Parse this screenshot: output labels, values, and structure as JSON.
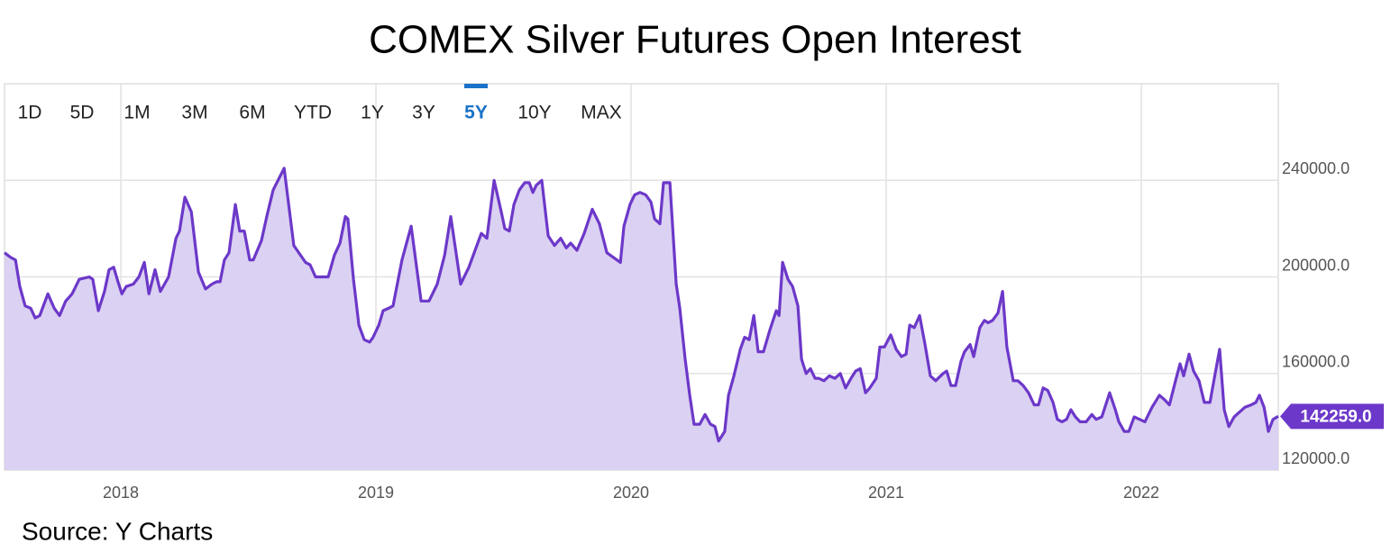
{
  "chart_data": {
    "type": "area",
    "title": "COMEX Silver Futures Open Interest",
    "source": "Source: Y Charts",
    "range_buttons": [
      "1D",
      "5D",
      "1M",
      "3M",
      "6M",
      "YTD",
      "1Y",
      "3Y",
      "5Y",
      "10Y",
      "MAX"
    ],
    "selected_range": "5Y",
    "x": [
      2017.544,
      2017.569,
      2017.587,
      2017.604,
      2017.625,
      2017.647,
      2017.664,
      2017.682,
      2017.714,
      2017.739,
      2017.76,
      2017.784,
      2017.809,
      2017.837,
      2017.876,
      2017.89,
      2017.912,
      2017.936,
      2017.954,
      2017.972,
      2017.989,
      2018.004,
      2018.021,
      2018.049,
      2018.071,
      2018.092,
      2018.11,
      2018.134,
      2018.155,
      2018.187,
      2018.216,
      2018.23,
      2018.251,
      2018.276,
      2018.304,
      2018.332,
      2018.357,
      2018.375,
      2018.389,
      2018.406,
      2018.424,
      2018.449,
      2018.466,
      2018.484,
      2018.505,
      2018.519,
      2018.551,
      2018.572,
      2018.597,
      2018.64,
      2018.678,
      2018.724,
      2018.742,
      2018.763,
      2018.795,
      2018.813,
      2018.837,
      2018.859,
      2018.88,
      2018.89,
      2018.912,
      2018.933,
      2018.954,
      2018.975,
      2018.989,
      2019.011,
      2019.028,
      2019.049,
      2019.067,
      2019.102,
      2019.138,
      2019.177,
      2019.208,
      2019.24,
      2019.269,
      2019.293,
      2019.332,
      2019.364,
      2019.413,
      2019.435,
      2019.463,
      2019.491,
      2019.505,
      2019.523,
      2019.541,
      2019.562,
      2019.583,
      2019.601,
      2019.615,
      2019.629,
      2019.65,
      2019.675,
      2019.7,
      2019.724,
      2019.746,
      2019.763,
      2019.788,
      2019.816,
      2019.848,
      2019.876,
      2019.905,
      2019.958,
      2019.972,
      2019.996,
      2020.014,
      2020.035,
      2020.057,
      2020.078,
      2020.092,
      2020.113,
      2020.127,
      2020.152,
      2020.177,
      2020.191,
      2020.212,
      2020.23,
      2020.247,
      2020.269,
      2020.29,
      2020.311,
      2020.329,
      2020.343,
      2020.367,
      2020.382,
      2020.403,
      2020.428,
      2020.445,
      2020.463,
      2020.481,
      2020.498,
      2020.519,
      2020.544,
      2020.569,
      2020.58,
      2020.594,
      2020.615,
      2020.633,
      2020.654,
      2020.668,
      2020.686,
      2020.703,
      2020.721,
      2020.735,
      2020.756,
      2020.777,
      2020.799,
      2020.82,
      2020.841,
      2020.862,
      2020.88,
      2020.898,
      2020.919,
      2020.936,
      2020.961,
      2020.975,
      2020.993,
      2021.018,
      2021.039,
      2021.06,
      2021.078,
      2021.092,
      2021.11,
      2021.131,
      2021.152,
      2021.173,
      2021.194,
      2021.223,
      2021.237,
      2021.254,
      2021.272,
      2021.293,
      2021.307,
      2021.329,
      2021.343,
      2021.367,
      2021.385,
      2021.399,
      2021.417,
      2021.438,
      2021.456,
      2021.473,
      2021.498,
      2021.516,
      2021.537,
      2021.558,
      2021.58,
      2021.597,
      2021.615,
      2021.633,
      2021.654,
      2021.671,
      2021.689,
      2021.707,
      2021.724,
      2021.742,
      2021.76,
      2021.784,
      2021.806,
      2021.823,
      2021.845,
      2021.876,
      2021.898,
      2021.912,
      2021.933,
      2021.951,
      2021.972,
      2021.993,
      2022.014,
      2022.042,
      2022.071,
      2022.092,
      2022.11,
      2022.134,
      2022.152,
      2022.166,
      2022.187,
      2022.205,
      2022.226,
      2022.247,
      2022.269,
      2022.286,
      2022.307,
      2022.325,
      2022.343,
      2022.364,
      2022.385,
      2022.406,
      2022.431,
      2022.449,
      2022.463,
      2022.481,
      2022.498,
      2022.516,
      2022.537
    ],
    "series": [
      {
        "color": "#6c38c9",
        "fill": "#d9cff1",
        "values": [
          210000,
          208000,
          207000,
          196000,
          188000,
          187000,
          183000,
          184000,
          193000,
          187000,
          184000,
          190000,
          193000,
          199000,
          200000,
          199000,
          186000,
          194000,
          203000,
          204000,
          198000,
          193000,
          196000,
          197000,
          200000,
          206000,
          193000,
          203000,
          194000,
          200000,
          216000,
          219000,
          233000,
          227000,
          202000,
          195000,
          197000,
          198000,
          198000,
          207000,
          210000,
          230000,
          219000,
          219000,
          207000,
          207000,
          215000,
          225000,
          236000,
          245000,
          213000,
          206000,
          205000,
          200000,
          200000,
          200000,
          209000,
          214000,
          225000,
          224000,
          199000,
          180000,
          174000,
          173000,
          175000,
          180000,
          186000,
          187000,
          188000,
          207000,
          221000,
          190000,
          190000,
          197000,
          209000,
          225000,
          197000,
          204000,
          218000,
          216000,
          240000,
          227000,
          220000,
          219000,
          230000,
          236000,
          239000,
          239000,
          235000,
          238000,
          240000,
          217000,
          213000,
          216000,
          212000,
          214000,
          211000,
          218000,
          228000,
          222000,
          210000,
          206000,
          221000,
          230000,
          234000,
          235000,
          234000,
          231000,
          224000,
          222000,
          239000,
          239000,
          197000,
          187000,
          166000,
          151000,
          139000,
          139000,
          143000,
          139000,
          138000,
          132000,
          136000,
          151000,
          159000,
          170000,
          175000,
          174000,
          184000,
          169000,
          169000,
          178000,
          186000,
          184000,
          206000,
          199000,
          196000,
          188000,
          166000,
          160000,
          162000,
          158000,
          158000,
          157000,
          159000,
          158000,
          160000,
          154000,
          158000,
          161000,
          162000,
          152000,
          154000,
          158000,
          171000,
          171000,
          176000,
          170000,
          167000,
          168000,
          180000,
          179000,
          184000,
          172000,
          159000,
          157000,
          160000,
          161000,
          155000,
          155000,
          165000,
          169000,
          172000,
          167000,
          179000,
          182000,
          181000,
          182000,
          185000,
          194000,
          171000,
          157000,
          157000,
          155000,
          152000,
          147000,
          147000,
          154000,
          153000,
          148000,
          141000,
          140000,
          141000,
          145000,
          142000,
          140000,
          140000,
          143000,
          141000,
          142000,
          152000,
          145000,
          140000,
          136000,
          136000,
          142000,
          141000,
          140000,
          146000,
          151000,
          149000,
          147000,
          157000,
          164000,
          159000,
          168000,
          161000,
          157000,
          148000,
          148000,
          158000,
          170000,
          145000,
          138000,
          142000,
          144000,
          146000,
          147000,
          148000,
          151000,
          146000,
          136000,
          141000,
          142259
        ]
      }
    ],
    "last_value": {
      "value": 142259,
      "label": "142259.0"
    },
    "xlim": [
      2017.544,
      2022.537
    ],
    "xticks": [
      2018,
      2019,
      2020,
      2021,
      2022
    ],
    "ylim": [
      120000,
      280000
    ],
    "yticks": [
      {
        "value": 120000,
        "label": "120000.0"
      },
      {
        "value": 160000,
        "label": "160000.0"
      },
      {
        "value": 200000,
        "label": "200000.0"
      },
      {
        "value": 240000,
        "label": "240000.0"
      }
    ],
    "grid": true
  }
}
